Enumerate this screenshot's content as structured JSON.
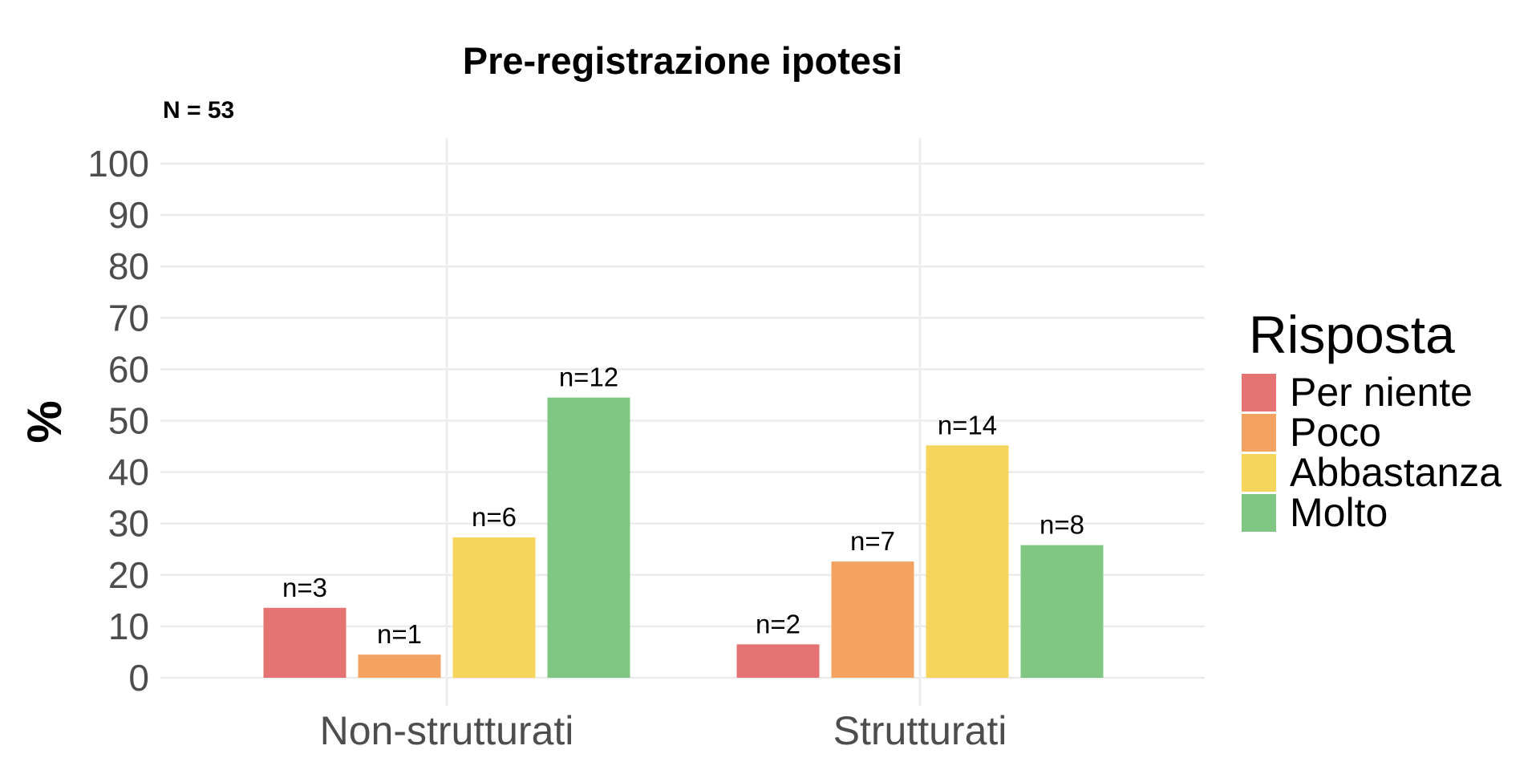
{
  "chart_data": {
    "type": "bar",
    "title": "Pre-registrazione ipotesi",
    "subtitle": "N = 53",
    "ylabel": "%",
    "xlabel": "",
    "ylim": [
      0,
      100
    ],
    "yticks": [
      0,
      10,
      20,
      30,
      40,
      50,
      60,
      70,
      80,
      90,
      100
    ],
    "grid": true,
    "categories": [
      "Non-strutturati",
      "Strutturati"
    ],
    "legend": {
      "title": "Risposta",
      "placement": "right"
    },
    "series": [
      {
        "name": "Per niente",
        "color": "#e57373",
        "values": [
          13.6,
          6.5
        ],
        "labels": [
          "n=3",
          "n=2"
        ]
      },
      {
        "name": "Poco",
        "color": "#f4a261",
        "values": [
          4.5,
          22.6
        ],
        "labels": [
          "n=1",
          "n=7"
        ]
      },
      {
        "name": "Abbastanza",
        "color": "#f6d55c",
        "values": [
          27.3,
          45.2
        ],
        "labels": [
          "n=6",
          "n=14"
        ]
      },
      {
        "name": "Molto",
        "color": "#81c784",
        "values": [
          54.5,
          25.8
        ],
        "labels": [
          "n=12",
          "n=8"
        ]
      }
    ]
  }
}
